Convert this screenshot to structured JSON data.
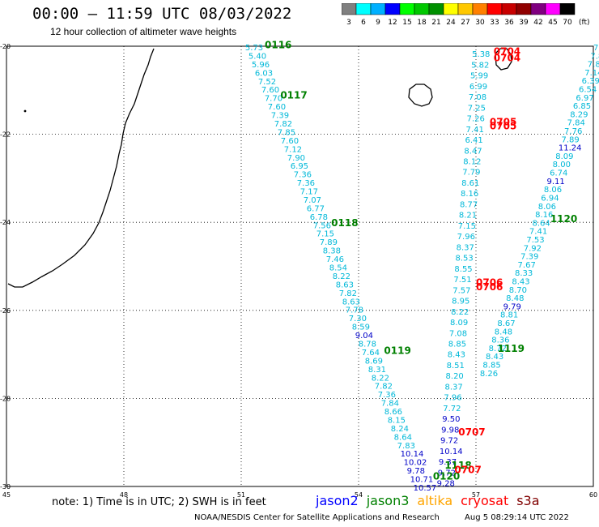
{
  "title": "00:00 — 11:59 UTC 08/03/2022",
  "subtitle": "12 hour collection of altimeter wave heights",
  "scale": {
    "colors": [
      "#808080",
      "#00ffff",
      "#00b0ff",
      "#0000ff",
      "#00ff00",
      "#00c800",
      "#009000",
      "#ffff00",
      "#ffc800",
      "#ff8000",
      "#ff0000",
      "#c80000",
      "#900000",
      "#800080",
      "#ff00ff",
      "#000000"
    ],
    "labels": [
      "3",
      "6",
      "9",
      "12",
      "15",
      "18",
      "21",
      "24",
      "27",
      "30",
      "33",
      "36",
      "39",
      "42",
      "45",
      "70"
    ],
    "unit": "(ft)"
  },
  "axes": {
    "x_ticks": [
      "45",
      "48",
      "51",
      "54",
      "57",
      "60"
    ],
    "y_ticks": [
      "-20",
      "-22",
      "-24",
      "-26",
      "-28",
      "-30"
    ]
  },
  "passes": [
    {
      "satellite": "jason3",
      "color": "#008000",
      "labels": [
        {
          "text": "0116",
          "lon": 51.6,
          "lat": -19.95
        },
        {
          "text": "0117",
          "lon": 52.0,
          "lat": -21.1
        },
        {
          "text": "0118",
          "lon": 53.3,
          "lat": -24.0
        },
        {
          "text": "0119",
          "lon": 54.65,
          "lat": -26.9
        },
        {
          "text": "1118",
          "lon": 56.2,
          "lat": -29.5
        },
        {
          "text": "0120",
          "lon": 55.9,
          "lat": -29.75
        },
        {
          "text": "1119",
          "lon": 57.55,
          "lat": -26.85
        },
        {
          "text": "1120",
          "lon": 58.9,
          "lat": -23.9
        }
      ]
    },
    {
      "satellite": "cryosat",
      "color": "#ff0000",
      "labels": [
        {
          "text": "0704",
          "lon": 57.45,
          "lat": -20.1
        },
        {
          "text": "0704",
          "lon": 57.45,
          "lat": -20.25
        },
        {
          "text": "0705",
          "lon": 57.35,
          "lat": -21.7
        },
        {
          "text": "0705",
          "lon": 57.35,
          "lat": -21.8
        },
        {
          "text": "0706",
          "lon": 57.0,
          "lat": -25.35
        },
        {
          "text": "0706",
          "lon": 57.0,
          "lat": -25.45
        },
        {
          "text": "0707",
          "lon": 56.55,
          "lat": -28.75
        },
        {
          "text": "0707",
          "lon": 56.45,
          "lat": -29.6
        }
      ]
    }
  ],
  "tracks": {
    "track_a": {
      "color": "#00bcd4",
      "start": [
        51.1,
        -20.0
      ],
      "end": [
        55.4,
        -30.0
      ],
      "values": [
        "5.73",
        "5.40",
        "5.96",
        "6.03",
        "7.52",
        "7.60",
        "7.70",
        "7.60",
        "7.39",
        "7.82",
        "7.85",
        "7.60",
        "7.12",
        "7.90",
        "6.95",
        "7.36",
        "7.36",
        "7.17",
        "7.07",
        "6.77",
        "6.78",
        "7.56",
        "7.15",
        "7.89",
        "8.38",
        "7.46",
        "8.54",
        "8.22",
        "8.63",
        "7.82",
        "8.63",
        "7.78",
        "7.30",
        "8.59",
        "9.04",
        "8.78",
        "7.64",
        "8.69",
        "8.31",
        "8.22",
        "7.82",
        "7.36",
        "7.84",
        "8.66",
        "8.15",
        "8.24",
        "8.64",
        "7.83",
        "10.14",
        "10.02",
        "9.78",
        "10.71",
        "10.57"
      ]
    },
    "track_b": {
      "color": "#00bcd4",
      "start": [
        56.9,
        -20.15
      ],
      "end": [
        56.0,
        -29.9
      ],
      "values": [
        "5.38",
        "5.82",
        "5.99",
        "6.99",
        "7.08",
        "7.25",
        "7.26",
        "7.41",
        "6.41",
        "8.47",
        "8.12",
        "7.79",
        "8.61",
        "8.16",
        "8.77",
        "8.21",
        "7.15",
        "7.96",
        "8.37",
        "8.53",
        "8.55",
        "7.51",
        "7.57",
        "8.95",
        "8.22",
        "8.09",
        "7.08",
        "8.85",
        "8.43",
        "8.51",
        "8.20",
        "8.37",
        "7.96",
        "7.72",
        "9.50",
        "9.98",
        "9.72",
        "10.14",
        "9.37",
        "9.72",
        "9.28"
      ]
    },
    "track_c": {
      "color": "#00bcd4",
      "start": [
        60.0,
        -20.0
      ],
      "end": [
        57.1,
        -27.4
      ],
      "values": [
        "7.0",
        "7.8",
        "7.84",
        "7.14",
        "6.39",
        "6.54",
        "6.97",
        "6.85",
        "8.29",
        "7.84",
        "7.76",
        "7.89",
        "11.24",
        "8.09",
        "8.00",
        "6.74",
        "9.11",
        "8.06",
        "6.94",
        "8.06",
        "8.16",
        "8.64",
        "7.41",
        "7.53",
        "7.92",
        "7.39",
        "7.67",
        "8.33",
        "8.43",
        "8.70",
        "8.48",
        "9.79",
        "8.81",
        "8.67",
        "8.48",
        "8.36",
        "8.72",
        "8.43",
        "8.85",
        "8.26"
      ]
    }
  },
  "note": "note: 1) Time is in UTC; 2) SWH is in feet",
  "legend": [
    {
      "name": "jason2",
      "color": "#0000ff"
    },
    {
      "name": "jason3",
      "color": "#008000"
    },
    {
      "name": "altika",
      "color": "#ffa500"
    },
    {
      "name": "cryosat",
      "color": "#ff0000"
    },
    {
      "name": "s3a",
      "color": "#800000"
    }
  ],
  "footer": {
    "credit": "NOAA/NESDIS Center for Satellite Applications and Research",
    "timestamp": "Aug  5 08:29:14 UTC 2022"
  }
}
